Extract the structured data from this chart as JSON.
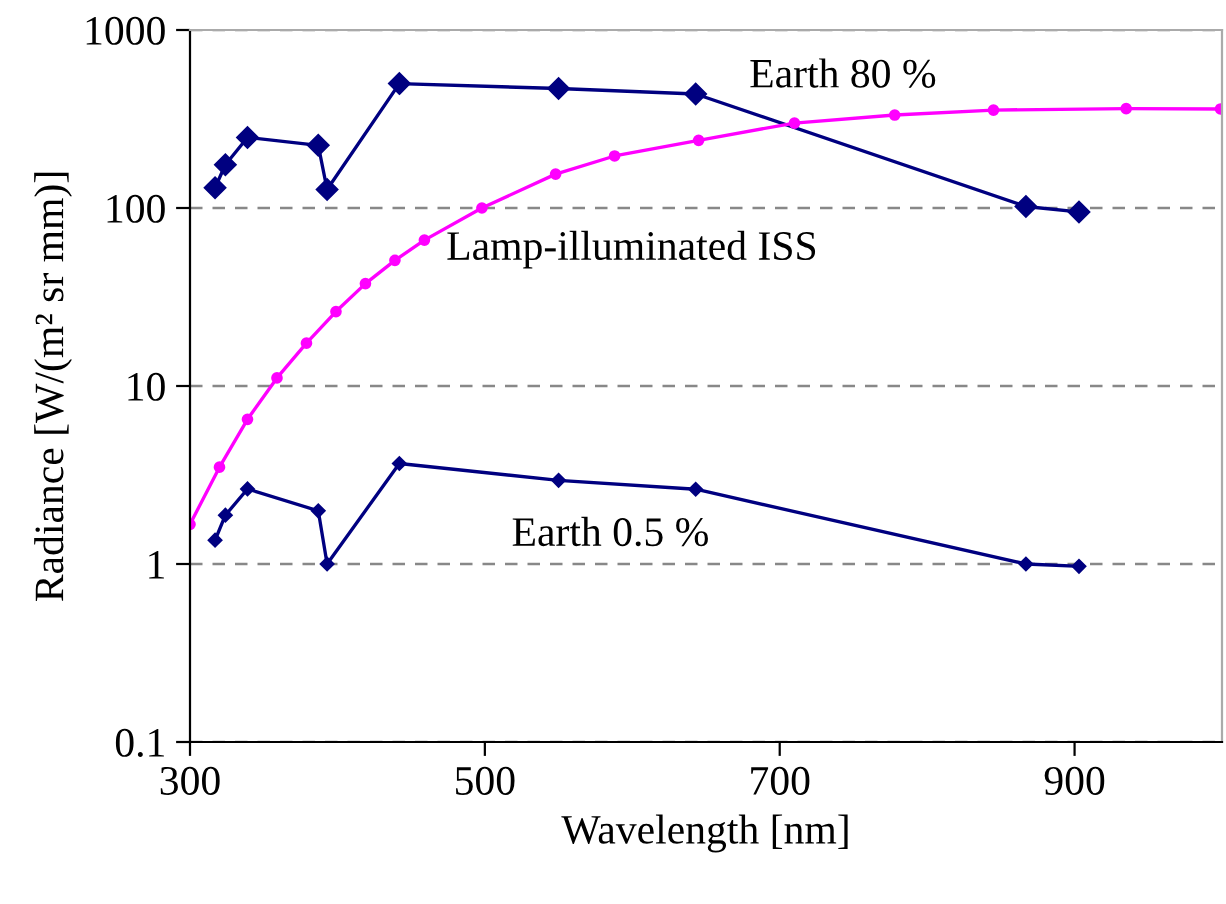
{
  "chart_data": {
    "type": "line",
    "xlabel": "Wavelength [nm]",
    "ylabel": "Radiance [W/(m² sr mm)]",
    "log": "y",
    "xlim": [
      300,
      1000
    ],
    "xticks": [
      300,
      500,
      700,
      900
    ],
    "ylim": [
      0.1,
      1000
    ],
    "yticks": [
      0.1,
      1,
      10,
      100,
      1000
    ],
    "grid": "y",
    "legend": false,
    "series": [
      {
        "name": "Earth 80 %",
        "color": "#000080",
        "marker": "diamond",
        "x": [
          317,
          324,
          339,
          387,
          393,
          442,
          550,
          643,
          867,
          903
        ],
        "values": [
          130,
          175,
          249,
          225,
          127,
          500,
          469,
          437,
          102,
          95
        ]
      },
      {
        "name": "Earth 0.5 %",
        "color": "#000080",
        "marker": "diamond",
        "x": [
          317,
          324,
          339,
          387,
          393,
          442,
          550,
          643,
          867,
          903
        ],
        "values": [
          1.36,
          1.88,
          2.64,
          1.99,
          1.0,
          3.67,
          2.95,
          2.63,
          1.0,
          0.97
        ]
      },
      {
        "name": "Lamp-illuminated ISS",
        "color": "#ff00ff",
        "marker": "circle",
        "x": [
          300,
          320,
          339,
          359,
          379,
          399,
          419,
          439,
          459,
          498,
          548,
          588,
          645,
          710,
          778,
          845,
          935,
          999
        ],
        "values": [
          1.67,
          3.5,
          6.5,
          11.1,
          17.4,
          26.2,
          37.6,
          50.8,
          66,
          100,
          155,
          196,
          240,
          300,
          333,
          355,
          362,
          360
        ]
      }
    ]
  }
}
